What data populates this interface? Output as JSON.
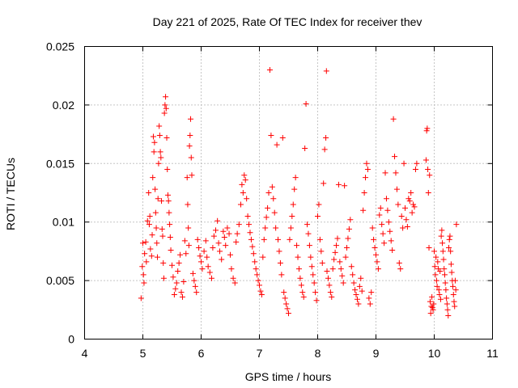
{
  "chart_data": {
    "type": "scatter",
    "title": "Day 221 of 2025, Rate Of TEC Index for receiver thev",
    "xlabel": "GPS time / hours",
    "ylabel": "ROTI / TECUs",
    "xlim": [
      4,
      11
    ],
    "ylim": [
      0,
      0.025
    ],
    "xticks": [
      4,
      5,
      6,
      7,
      8,
      9,
      10,
      11
    ],
    "xtick_labels": [
      "4",
      "5",
      "6",
      "7",
      "8",
      "9",
      "10",
      "11"
    ],
    "yticks": [
      0,
      0.005,
      0.01,
      0.015,
      0.02,
      0.025
    ],
    "ytick_labels": [
      "0",
      "0.005",
      "0.01",
      "0.015",
      "0.02",
      "0.025"
    ],
    "grid": true,
    "marker": "plus",
    "color": "#ff0000",
    "series": [
      {
        "name": "ROTI",
        "points": [
          [
            4.97,
            0.0035
          ],
          [
            4.99,
            0.0062
          ],
          [
            5.0,
            0.0082
          ],
          [
            5.01,
            0.0055
          ],
          [
            5.02,
            0.0048
          ],
          [
            5.03,
            0.0073
          ],
          [
            5.05,
            0.0083
          ],
          [
            5.06,
            0.0066
          ],
          [
            5.08,
            0.0101
          ],
          [
            5.1,
            0.0125
          ],
          [
            5.11,
            0.0098
          ],
          [
            5.12,
            0.0105
          ],
          [
            5.13,
            0.0077
          ],
          [
            5.15,
            0.0071
          ],
          [
            5.16,
            0.0089
          ],
          [
            5.17,
            0.0138
          ],
          [
            5.18,
            0.0173
          ],
          [
            5.19,
            0.016
          ],
          [
            5.2,
            0.0168
          ],
          [
            5.21,
            0.0128
          ],
          [
            5.22,
            0.0108
          ],
          [
            5.23,
            0.0095
          ],
          [
            5.24,
            0.0082
          ],
          [
            5.25,
            0.007
          ],
          [
            5.26,
            0.012
          ],
          [
            5.27,
            0.015
          ],
          [
            5.28,
            0.0182
          ],
          [
            5.29,
            0.0174
          ],
          [
            5.3,
            0.016
          ],
          [
            5.31,
            0.0155
          ],
          [
            5.32,
            0.0118
          ],
          [
            5.33,
            0.0094
          ],
          [
            5.34,
            0.0088
          ],
          [
            5.35,
            0.0065
          ],
          [
            5.36,
            0.0052
          ],
          [
            5.37,
            0.0193
          ],
          [
            5.38,
            0.02
          ],
          [
            5.39,
            0.0207
          ],
          [
            5.4,
            0.0197
          ],
          [
            5.41,
            0.0172
          ],
          [
            5.42,
            0.0145
          ],
          [
            5.43,
            0.0123
          ],
          [
            5.44,
            0.0118
          ],
          [
            5.45,
            0.0108
          ],
          [
            5.46,
            0.0098
          ],
          [
            5.47,
            0.0087
          ],
          [
            5.48,
            0.0076
          ],
          [
            5.5,
            0.0063
          ],
          [
            5.52,
            0.0053
          ],
          [
            5.54,
            0.0038
          ],
          [
            5.56,
            0.0043
          ],
          [
            5.58,
            0.0048
          ],
          [
            5.6,
            0.0058
          ],
          [
            5.62,
            0.0065
          ],
          [
            5.64,
            0.0072
          ],
          [
            5.66,
            0.004
          ],
          [
            5.68,
            0.0036
          ],
          [
            5.7,
            0.0049
          ],
          [
            5.72,
            0.0084
          ],
          [
            5.74,
            0.0073
          ],
          [
            5.76,
            0.0138
          ],
          [
            5.77,
            0.0115
          ],
          [
            5.78,
            0.0095
          ],
          [
            5.79,
            0.008
          ],
          [
            5.8,
            0.0165
          ],
          [
            5.81,
            0.0174
          ],
          [
            5.82,
            0.0188
          ],
          [
            5.83,
            0.0155
          ],
          [
            5.84,
            0.014
          ],
          [
            5.86,
            0.0056
          ],
          [
            5.88,
            0.005
          ],
          [
            5.9,
            0.0045
          ],
          [
            5.92,
            0.004
          ],
          [
            5.94,
            0.0085
          ],
          [
            5.96,
            0.0078
          ],
          [
            5.98,
            0.0071
          ],
          [
            6.0,
            0.0066
          ],
          [
            6.02,
            0.006
          ],
          [
            6.05,
            0.0075
          ],
          [
            6.08,
            0.0084
          ],
          [
            6.1,
            0.007
          ],
          [
            6.12,
            0.0062
          ],
          [
            6.15,
            0.0057
          ],
          [
            6.18,
            0.0052
          ],
          [
            6.2,
            0.0078
          ],
          [
            6.22,
            0.0088
          ],
          [
            6.25,
            0.0093
          ],
          [
            6.28,
            0.0101
          ],
          [
            6.3,
            0.0082
          ],
          [
            6.32,
            0.0075
          ],
          [
            6.35,
            0.0068
          ],
          [
            6.38,
            0.0092
          ],
          [
            6.4,
            0.0087
          ],
          [
            6.42,
            0.008
          ],
          [
            6.45,
            0.0095
          ],
          [
            6.48,
            0.009
          ],
          [
            6.5,
            0.0072
          ],
          [
            6.52,
            0.006
          ],
          [
            6.55,
            0.0052
          ],
          [
            6.58,
            0.0048
          ],
          [
            6.6,
            0.0083
          ],
          [
            6.62,
            0.009
          ],
          [
            6.65,
            0.0098
          ],
          [
            6.68,
            0.0115
          ],
          [
            6.7,
            0.0132
          ],
          [
            6.72,
            0.0125
          ],
          [
            6.74,
            0.014
          ],
          [
            6.76,
            0.0136
          ],
          [
            6.78,
            0.012
          ],
          [
            6.8,
            0.0105
          ],
          [
            6.82,
            0.0098
          ],
          [
            6.84,
            0.0091
          ],
          [
            6.86,
            0.0085
          ],
          [
            6.88,
            0.0079
          ],
          [
            6.9,
            0.0073
          ],
          [
            6.92,
            0.0066
          ],
          [
            6.94,
            0.006
          ],
          [
            6.96,
            0.0055
          ],
          [
            6.98,
            0.005
          ],
          [
            7.0,
            0.0046
          ],
          [
            7.02,
            0.0041
          ],
          [
            7.04,
            0.0038
          ],
          [
            7.06,
            0.007
          ],
          [
            7.08,
            0.0085
          ],
          [
            7.1,
            0.0095
          ],
          [
            7.12,
            0.0104
          ],
          [
            7.14,
            0.0112
          ],
          [
            7.16,
            0.0125
          ],
          [
            7.18,
            0.023
          ],
          [
            7.2,
            0.0174
          ],
          [
            7.22,
            0.013
          ],
          [
            7.24,
            0.012
          ],
          [
            7.26,
            0.0108
          ],
          [
            7.28,
            0.0095
          ],
          [
            7.3,
            0.0166
          ],
          [
            7.32,
            0.0085
          ],
          [
            7.34,
            0.0075
          ],
          [
            7.36,
            0.0065
          ],
          [
            7.38,
            0.0055
          ],
          [
            7.4,
            0.0172
          ],
          [
            7.42,
            0.004
          ],
          [
            7.44,
            0.0035
          ],
          [
            7.46,
            0.003
          ],
          [
            7.48,
            0.0026
          ],
          [
            7.5,
            0.0022
          ],
          [
            7.52,
            0.0085
          ],
          [
            7.54,
            0.0095
          ],
          [
            7.56,
            0.0105
          ],
          [
            7.58,
            0.0115
          ],
          [
            7.6,
            0.0128
          ],
          [
            7.62,
            0.0138
          ],
          [
            7.64,
            0.008
          ],
          [
            7.66,
            0.007
          ],
          [
            7.68,
            0.006
          ],
          [
            7.7,
            0.0052
          ],
          [
            7.72,
            0.0046
          ],
          [
            7.74,
            0.004
          ],
          [
            7.76,
            0.0036
          ],
          [
            7.78,
            0.0163
          ],
          [
            7.8,
            0.0201
          ],
          [
            7.82,
            0.0098
          ],
          [
            7.84,
            0.009
          ],
          [
            7.86,
            0.008
          ],
          [
            7.88,
            0.007
          ],
          [
            7.9,
            0.0062
          ],
          [
            7.92,
            0.0055
          ],
          [
            7.94,
            0.0048
          ],
          [
            7.96,
            0.004
          ],
          [
            7.98,
            0.0033
          ],
          [
            8.0,
            0.0105
          ],
          [
            8.02,
            0.0115
          ],
          [
            8.04,
            0.0085
          ],
          [
            8.06,
            0.0075
          ],
          [
            8.08,
            0.0065
          ],
          [
            8.1,
            0.0133
          ],
          [
            8.12,
            0.0162
          ],
          [
            8.14,
            0.0172
          ],
          [
            8.15,
            0.0229
          ],
          [
            8.16,
            0.0058
          ],
          [
            8.18,
            0.0052
          ],
          [
            8.2,
            0.0046
          ],
          [
            8.22,
            0.004
          ],
          [
            8.24,
            0.0036
          ],
          [
            8.26,
            0.006
          ],
          [
            8.28,
            0.0068
          ],
          [
            8.3,
            0.0074
          ],
          [
            8.32,
            0.008
          ],
          [
            8.34,
            0.0086
          ],
          [
            8.36,
            0.0132
          ],
          [
            8.38,
            0.0066
          ],
          [
            8.4,
            0.006
          ],
          [
            8.42,
            0.0054
          ],
          [
            8.44,
            0.0048
          ],
          [
            8.46,
            0.0131
          ],
          [
            8.48,
            0.007
          ],
          [
            8.5,
            0.0078
          ],
          [
            8.52,
            0.0086
          ],
          [
            8.54,
            0.0094
          ],
          [
            8.56,
            0.0102
          ],
          [
            8.58,
            0.0062
          ],
          [
            8.6,
            0.0055
          ],
          [
            8.62,
            0.0048
          ],
          [
            8.64,
            0.0042
          ],
          [
            8.66,
            0.0038
          ],
          [
            8.68,
            0.0034
          ],
          [
            8.7,
            0.003
          ],
          [
            8.72,
            0.0045
          ],
          [
            8.74,
            0.0052
          ],
          [
            8.76,
            0.0041
          ],
          [
            8.78,
            0.011
          ],
          [
            8.8,
            0.0125
          ],
          [
            8.82,
            0.0138
          ],
          [
            8.84,
            0.015
          ],
          [
            8.86,
            0.0145
          ],
          [
            8.88,
            0.0035
          ],
          [
            8.9,
            0.003
          ],
          [
            8.92,
            0.004
          ],
          [
            8.94,
            0.0095
          ],
          [
            8.96,
            0.0085
          ],
          [
            8.98,
            0.0078
          ],
          [
            9.0,
            0.0072
          ],
          [
            9.02,
            0.0066
          ],
          [
            9.04,
            0.006
          ],
          [
            9.06,
            0.0106
          ],
          [
            9.08,
            0.0112
          ],
          [
            9.1,
            0.0098
          ],
          [
            9.12,
            0.009
          ],
          [
            9.14,
            0.0082
          ],
          [
            9.16,
            0.0142
          ],
          [
            9.18,
            0.012
          ],
          [
            9.2,
            0.011
          ],
          [
            9.22,
            0.01
          ],
          [
            9.24,
            0.0092
          ],
          [
            9.26,
            0.0084
          ],
          [
            9.28,
            0.0076
          ],
          [
            9.3,
            0.0188
          ],
          [
            9.32,
            0.0156
          ],
          [
            9.34,
            0.0142
          ],
          [
            9.36,
            0.0128
          ],
          [
            9.38,
            0.0115
          ],
          [
            9.4,
            0.0065
          ],
          [
            9.42,
            0.006
          ],
          [
            9.44,
            0.0105
          ],
          [
            9.46,
            0.0095
          ],
          [
            9.48,
            0.015
          ],
          [
            9.5,
            0.0112
          ],
          [
            9.52,
            0.0102
          ],
          [
            9.54,
            0.0096
          ],
          [
            9.56,
            0.012
          ],
          [
            9.58,
            0.0118
          ],
          [
            9.6,
            0.0125
          ],
          [
            9.62,
            0.0108
          ],
          [
            9.64,
            0.0115
          ],
          [
            9.66,
            0.0113
          ],
          [
            9.68,
            0.0145
          ],
          [
            9.7,
            0.015
          ],
          [
            9.86,
            0.0153
          ],
          [
            9.87,
            0.0178
          ],
          [
            9.88,
            0.018
          ],
          [
            9.89,
            0.0145
          ],
          [
            9.9,
            0.0125
          ],
          [
            9.91,
            0.0078
          ],
          [
            9.92,
            0.014
          ],
          [
            9.93,
            0.0032
          ],
          [
            9.94,
            0.0022
          ],
          [
            9.95,
            0.0028
          ],
          [
            9.96,
            0.0036
          ],
          [
            9.97,
            0.0027
          ],
          [
            9.98,
            0.0025
          ],
          [
            9.99,
            0.003
          ],
          [
            10.0,
            0.0075
          ],
          [
            10.01,
            0.0062
          ],
          [
            10.02,
            0.0055
          ],
          [
            10.03,
            0.007
          ],
          [
            10.04,
            0.005
          ],
          [
            10.05,
            0.0045
          ],
          [
            10.06,
            0.0066
          ],
          [
            10.07,
            0.006
          ],
          [
            10.08,
            0.0042
          ],
          [
            10.09,
            0.0038
          ],
          [
            10.1,
            0.0058
          ],
          [
            10.11,
            0.0034
          ],
          [
            10.12,
            0.0088
          ],
          [
            10.13,
            0.0093
          ],
          [
            10.14,
            0.0082
          ],
          [
            10.15,
            0.0075
          ],
          [
            10.16,
            0.0068
          ],
          [
            10.17,
            0.006
          ],
          [
            10.18,
            0.0055
          ],
          [
            10.19,
            0.0048
          ],
          [
            10.2,
            0.0042
          ],
          [
            10.21,
            0.0035
          ],
          [
            10.22,
            0.003
          ],
          [
            10.23,
            0.0025
          ],
          [
            10.24,
            0.002
          ],
          [
            10.25,
            0.0078
          ],
          [
            10.26,
            0.0085
          ],
          [
            10.27,
            0.0088
          ],
          [
            10.28,
            0.0075
          ],
          [
            10.29,
            0.0064
          ],
          [
            10.3,
            0.0057
          ],
          [
            10.31,
            0.005
          ],
          [
            10.32,
            0.0045
          ],
          [
            10.33,
            0.0038
          ],
          [
            10.34,
            0.0032
          ],
          [
            10.35,
            0.0028
          ],
          [
            10.36,
            0.005
          ],
          [
            10.37,
            0.0042
          ],
          [
            10.38,
            0.0098
          ]
        ]
      }
    ]
  }
}
